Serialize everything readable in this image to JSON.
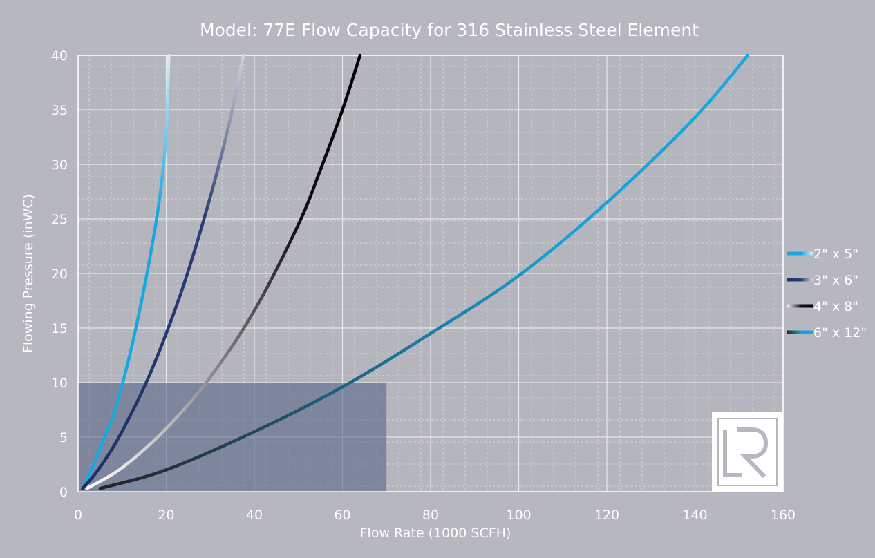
{
  "chart_data": {
    "type": "line",
    "title": "Model: 77E Flow Capacity for 316 Stainless Steel Element",
    "xlabel": "Flow Rate (1000 SCFH)",
    "ylabel": "Flowing Pressure (inWC)",
    "xlim": [
      0,
      160
    ],
    "ylim": [
      0,
      40
    ],
    "xticks": [
      "0",
      "20",
      "40",
      "60",
      "80",
      "100",
      "120",
      "140",
      "160"
    ],
    "yticks": [
      "0",
      "5",
      "10",
      "15",
      "20",
      "25",
      "30",
      "35",
      "40"
    ],
    "grid": true,
    "legend_position": "right",
    "highlight_region": {
      "x": [
        0,
        70
      ],
      "y": [
        0,
        10
      ]
    },
    "series": [
      {
        "name": "2\" x 5\"",
        "color": "#1aa7df",
        "color_low": "#1aa7df",
        "color_high": "#d6ecf7",
        "x": [
          1,
          3,
          5,
          8,
          10,
          12,
          14,
          16,
          18,
          19,
          20,
          20.6
        ],
        "y": [
          0.3,
          2,
          4,
          7,
          9.8,
          13,
          16.7,
          20.8,
          25.5,
          28.5,
          33,
          40
        ]
      },
      {
        "name": "3\" x 6\"",
        "color": "#2b3f73",
        "color_low": "#1e2f66",
        "color_high": "#d2d4de",
        "x": [
          1,
          4,
          8,
          12,
          16,
          20,
          24,
          28,
          32,
          35,
          37.5
        ],
        "y": [
          0.3,
          1.7,
          4.1,
          7.1,
          10.5,
          14.5,
          19,
          24.2,
          30,
          35,
          40
        ]
      },
      {
        "name": "4\" x 8\"",
        "color": "#111111",
        "color_low": "#ffffff",
        "color_high": "#000000",
        "x": [
          2,
          10,
          20,
          30,
          40,
          50,
          55,
          60,
          64
        ],
        "y": [
          0.3,
          2.2,
          5.8,
          10.5,
          16.6,
          24.5,
          29.5,
          35,
          40
        ]
      },
      {
        "name": "6\" x 12\"",
        "color": "#1a9fd6",
        "color_low": "#222222",
        "color_high": "#1aa7df",
        "x": [
          5,
          20,
          40,
          60,
          80,
          100,
          120,
          140,
          152
        ],
        "y": [
          0.3,
          2,
          5.5,
          9.6,
          14.5,
          19.8,
          26.5,
          34.3,
          40
        ]
      }
    ]
  },
  "logo": {
    "text": "LR"
  }
}
